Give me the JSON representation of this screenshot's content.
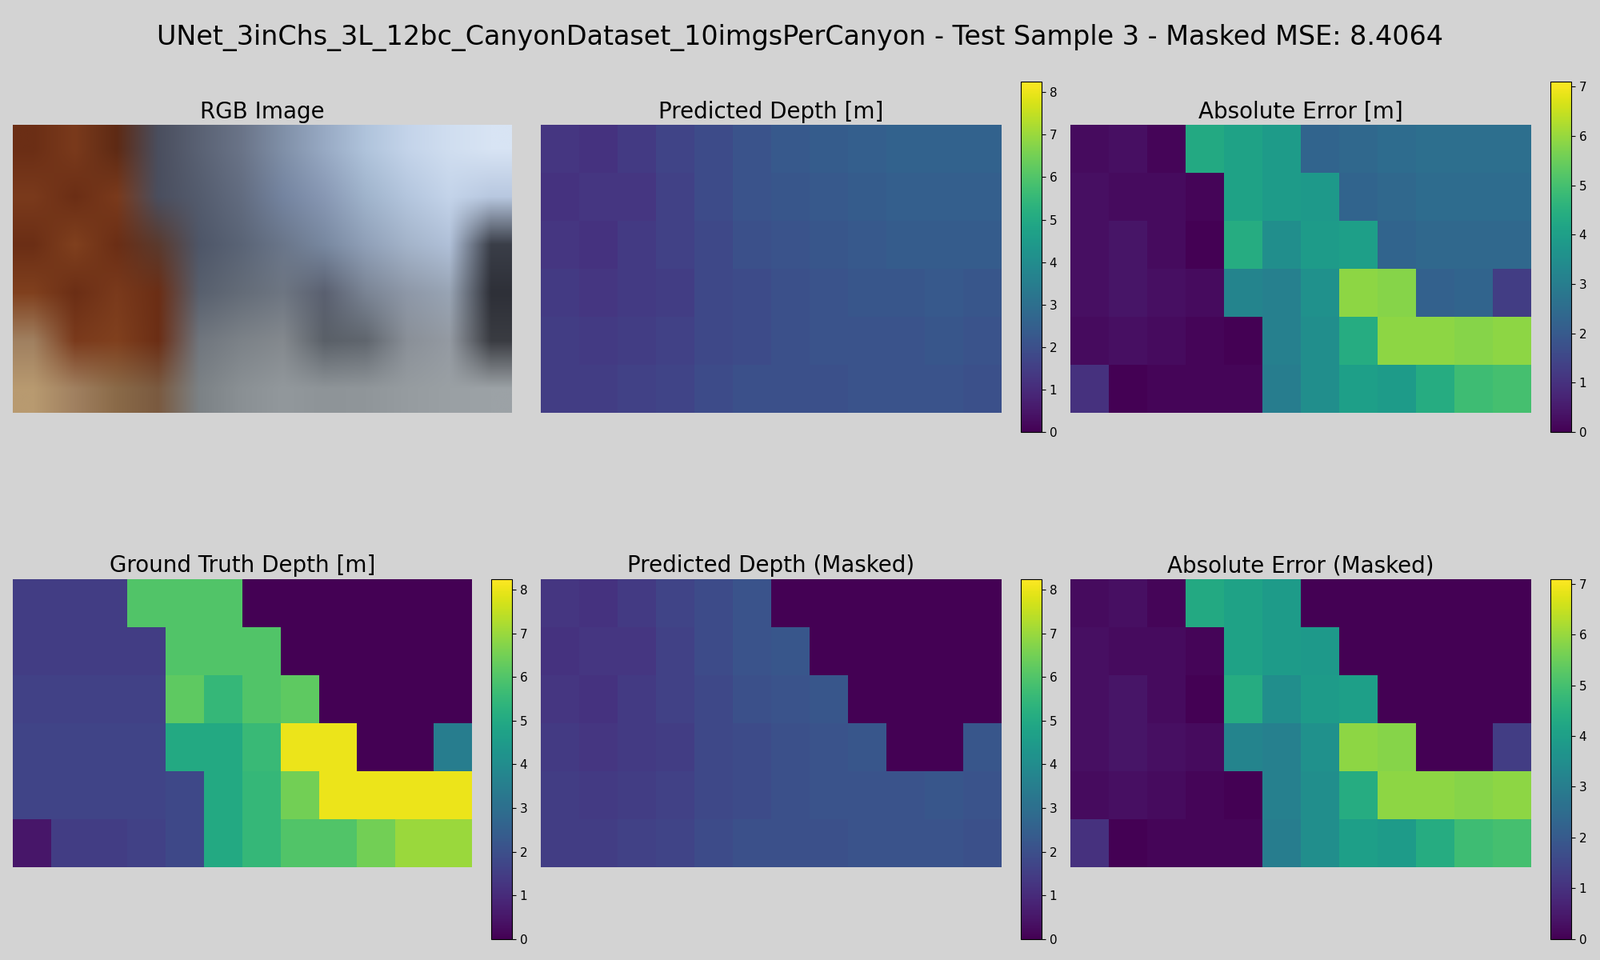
{
  "title": "UNet_3inChs_3L_12bc_CanyonDataset_10imgsPerCanyon - Test Sample 3 - Masked MSE: 8.4064",
  "chart_data": [
    {
      "type": "image",
      "title": "RGB Image",
      "tick_labels": false,
      "rgb": [
        [
          "#6b2e15",
          "#7a3a1c",
          "#5e2a14",
          "#4a4e5e",
          "#5a6274",
          "#6a7488",
          "#8090a8",
          "#98aac4",
          "#b0c4dc",
          "#c4d4ea",
          "#d0def0",
          "#d8e4f4"
        ],
        [
          "#7a3a1c",
          "#6b2e15",
          "#7a3a1c",
          "#4a4e5e",
          "#545c6e",
          "#626c80",
          "#7484a0",
          "#8898b4",
          "#a0b4cc",
          "#b4c6de",
          "#c4d4ea",
          "#b8c8e0"
        ],
        [
          "#6b2e15",
          "#80401e",
          "#6b2e15",
          "#5a3a2e",
          "#4e5668",
          "#5a6476",
          "#6a768a",
          "#7888a0",
          "#90a0b8",
          "#a4b4ca",
          "#b0c0d8",
          "#3a3e48"
        ],
        [
          "#80401e",
          "#6b2e15",
          "#7a3a1c",
          "#6b2e15",
          "#58606e",
          "#646c78",
          "#6e7682",
          "#5a6070",
          "#7a8494",
          "#8e98a8",
          "#98a4b4",
          "#2e3038"
        ],
        [
          "#a08060",
          "#7a3a1c",
          "#80401e",
          "#6b2e15",
          "#70767e",
          "#7c8288",
          "#84898e",
          "#5a6068",
          "#60666e",
          "#8a9098",
          "#949aa2",
          "#3a3c42"
        ],
        [
          "#b89a70",
          "#a08060",
          "#8a6a48",
          "#7a5a40",
          "#7c8286",
          "#8a9094",
          "#92989c",
          "#8e9498",
          "#90969a",
          "#969ca0",
          "#9aa0a4",
          "#9ca2a6"
        ]
      ]
    },
    {
      "type": "heatmap",
      "title": "Predicted Depth [m]",
      "color": "viridis",
      "tick_labels": false,
      "colorbar": {
        "range": [
          0,
          8.25
        ],
        "ticks": [
          0,
          1,
          2,
          3,
          4,
          5,
          6,
          7,
          8
        ]
      },
      "cells": [
        [
          1.3,
          1.2,
          1.4,
          1.7,
          1.9,
          2.1,
          2.3,
          2.4,
          2.5,
          2.6,
          2.6,
          2.6
        ],
        [
          1.2,
          1.3,
          1.3,
          1.6,
          1.9,
          2.1,
          2.2,
          2.3,
          2.4,
          2.5,
          2.5,
          2.5
        ],
        [
          1.3,
          1.2,
          1.4,
          1.6,
          1.8,
          2.0,
          2.1,
          2.2,
          2.3,
          2.4,
          2.4,
          2.4
        ],
        [
          1.4,
          1.3,
          1.4,
          1.5,
          1.8,
          1.9,
          2.0,
          2.1,
          2.2,
          2.2,
          2.3,
          2.2
        ],
        [
          1.5,
          1.4,
          1.5,
          1.6,
          1.8,
          1.9,
          2.0,
          2.1,
          2.1,
          2.1,
          2.2,
          2.1
        ],
        [
          1.5,
          1.5,
          1.6,
          1.7,
          1.9,
          2.0,
          2.0,
          2.0,
          2.1,
          2.1,
          2.1,
          2.0
        ]
      ]
    },
    {
      "type": "heatmap",
      "title": "Absolute Error [m]",
      "color": "viridis",
      "tick_labels": false,
      "colorbar": {
        "range": [
          0,
          7.1
        ],
        "ticks": [
          0,
          1,
          2,
          3,
          4,
          5,
          6,
          7
        ]
      },
      "cells": [
        [
          0.2,
          0.3,
          0.1,
          4.3,
          4.1,
          3.9,
          2.3,
          2.4,
          2.5,
          2.6,
          2.6,
          2.6
        ],
        [
          0.3,
          0.2,
          0.2,
          0.1,
          4.1,
          3.9,
          3.8,
          2.3,
          2.4,
          2.5,
          2.5,
          2.5
        ],
        [
          0.3,
          0.4,
          0.2,
          0.0,
          4.4,
          3.5,
          3.9,
          4.0,
          2.3,
          2.4,
          2.4,
          2.4
        ],
        [
          0.3,
          0.4,
          0.3,
          0.2,
          3.2,
          3.1,
          3.6,
          5.9,
          5.8,
          2.2,
          2.3,
          1.3
        ],
        [
          0.2,
          0.3,
          0.2,
          0.1,
          0.0,
          3.1,
          3.5,
          4.4,
          5.9,
          5.9,
          5.8,
          5.9
        ],
        [
          1.0,
          0.0,
          0.1,
          0.1,
          0.1,
          3.0,
          3.5,
          4.0,
          3.9,
          4.4,
          4.9,
          5.0
        ]
      ]
    },
    {
      "type": "heatmap",
      "title": "Ground Truth Depth [m]",
      "color": "viridis",
      "tick_labels": false,
      "colorbar": {
        "range": [
          0,
          8.25
        ],
        "ticks": [
          0,
          1,
          2,
          3,
          4,
          5,
          6,
          7,
          8
        ]
      },
      "cells": [
        [
          1.5,
          1.5,
          1.5,
          6.0,
          6.0,
          6.0,
          0,
          0,
          0,
          0,
          0,
          0
        ],
        [
          1.5,
          1.5,
          1.5,
          1.5,
          6.0,
          6.0,
          6.0,
          0,
          0,
          0,
          0,
          0
        ],
        [
          1.6,
          1.6,
          1.6,
          1.6,
          6.2,
          5.5,
          6.0,
          6.2,
          0,
          0,
          0,
          0
        ],
        [
          1.7,
          1.7,
          1.7,
          1.7,
          5.0,
          5.0,
          5.6,
          8.0,
          8.0,
          0,
          0,
          3.5
        ],
        [
          1.7,
          1.7,
          1.7,
          1.7,
          1.8,
          5.0,
          5.5,
          6.5,
          8.0,
          8.0,
          8.0,
          8.0
        ],
        [
          0.5,
          1.5,
          1.5,
          1.6,
          1.8,
          5.0,
          5.5,
          6.0,
          6.0,
          6.5,
          7.0,
          7.0
        ]
      ]
    },
    {
      "type": "heatmap",
      "title": "Predicted Depth (Masked)",
      "color": "viridis",
      "tick_labels": false,
      "colorbar": {
        "range": [
          0,
          8.25
        ],
        "ticks": [
          0,
          1,
          2,
          3,
          4,
          5,
          6,
          7,
          8
        ]
      },
      "cells": [
        [
          1.3,
          1.2,
          1.4,
          1.7,
          1.9,
          2.1,
          0,
          0,
          0,
          0,
          0,
          0
        ],
        [
          1.2,
          1.3,
          1.3,
          1.6,
          1.9,
          2.1,
          2.2,
          0,
          0,
          0,
          0,
          0
        ],
        [
          1.3,
          1.2,
          1.4,
          1.6,
          1.8,
          2.0,
          2.1,
          2.2,
          0,
          0,
          0,
          0
        ],
        [
          1.4,
          1.3,
          1.4,
          1.5,
          1.8,
          1.9,
          2.0,
          2.1,
          2.2,
          0,
          0,
          2.2
        ],
        [
          1.5,
          1.4,
          1.5,
          1.6,
          1.8,
          1.9,
          2.0,
          2.1,
          2.1,
          2.1,
          2.2,
          2.1
        ],
        [
          1.5,
          1.5,
          1.6,
          1.7,
          1.9,
          2.0,
          2.0,
          2.0,
          2.1,
          2.1,
          2.1,
          2.0
        ]
      ]
    },
    {
      "type": "heatmap",
      "title": "Absolute Error (Masked)",
      "color": "viridis",
      "tick_labels": false,
      "colorbar": {
        "range": [
          0,
          7.1
        ],
        "ticks": [
          0,
          1,
          2,
          3,
          4,
          5,
          6,
          7
        ]
      },
      "cells": [
        [
          0.2,
          0.3,
          0.1,
          4.3,
          4.1,
          3.9,
          0,
          0,
          0,
          0,
          0,
          0
        ],
        [
          0.3,
          0.2,
          0.2,
          0.1,
          4.1,
          3.9,
          3.8,
          0,
          0,
          0,
          0,
          0
        ],
        [
          0.3,
          0.4,
          0.2,
          0.0,
          4.4,
          3.5,
          3.9,
          4.0,
          0,
          0,
          0,
          0
        ],
        [
          0.3,
          0.4,
          0.3,
          0.2,
          3.2,
          3.1,
          3.6,
          5.9,
          5.8,
          0,
          0,
          1.3
        ],
        [
          0.2,
          0.3,
          0.2,
          0.1,
          0.0,
          3.1,
          3.5,
          4.4,
          5.9,
          5.9,
          5.8,
          5.9
        ],
        [
          1.0,
          0.0,
          0.1,
          0.1,
          0.1,
          3.0,
          3.5,
          4.0,
          3.9,
          4.4,
          4.9,
          5.0
        ]
      ]
    }
  ]
}
